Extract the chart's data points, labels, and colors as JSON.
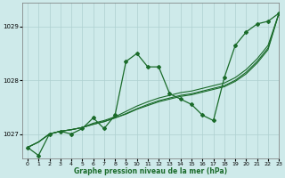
{
  "bg_color": "#ceeaea",
  "grid_color": "#aed0d0",
  "line_color": "#1a6b2a",
  "xlabel": "Graphe pression niveau de la mer (hPa)",
  "ylim": [
    1026.55,
    1029.45
  ],
  "xlim": [
    -0.5,
    23
  ],
  "yticks": [
    1027,
    1028,
    1029
  ],
  "xticks": [
    0,
    1,
    2,
    3,
    4,
    5,
    6,
    7,
    8,
    9,
    10,
    11,
    12,
    13,
    14,
    15,
    16,
    17,
    18,
    19,
    20,
    21,
    22,
    23
  ],
  "main_y": [
    1026.75,
    1026.6,
    1027.0,
    1027.05,
    1027.0,
    1027.1,
    1027.3,
    1027.1,
    1027.35,
    1028.35,
    1028.5,
    1028.25,
    1028.25,
    1027.75,
    1027.65,
    1027.55,
    1027.35,
    1027.25,
    1028.05,
    1028.65,
    1028.9,
    1029.05,
    1029.1,
    1029.25
  ],
  "trend1": [
    1026.75,
    1026.85,
    1027.0,
    1027.05,
    1027.08,
    1027.12,
    1027.2,
    1027.25,
    1027.32,
    1027.42,
    1027.52,
    1027.6,
    1027.67,
    1027.72,
    1027.77,
    1027.8,
    1027.85,
    1027.9,
    1027.95,
    1028.05,
    1028.2,
    1028.4,
    1028.65,
    1029.25
  ],
  "trend2": [
    1026.75,
    1026.85,
    1027.0,
    1027.05,
    1027.08,
    1027.12,
    1027.18,
    1027.23,
    1027.3,
    1027.38,
    1027.47,
    1027.55,
    1027.62,
    1027.67,
    1027.72,
    1027.75,
    1027.8,
    1027.85,
    1027.9,
    1028.0,
    1028.15,
    1028.35,
    1028.6,
    1029.25
  ],
  "trend3": [
    1026.75,
    1026.85,
    1027.0,
    1027.05,
    1027.08,
    1027.12,
    1027.18,
    1027.23,
    1027.3,
    1027.37,
    1027.46,
    1027.53,
    1027.6,
    1027.65,
    1027.7,
    1027.73,
    1027.78,
    1027.83,
    1027.88,
    1027.98,
    1028.12,
    1028.32,
    1028.57,
    1029.25
  ]
}
